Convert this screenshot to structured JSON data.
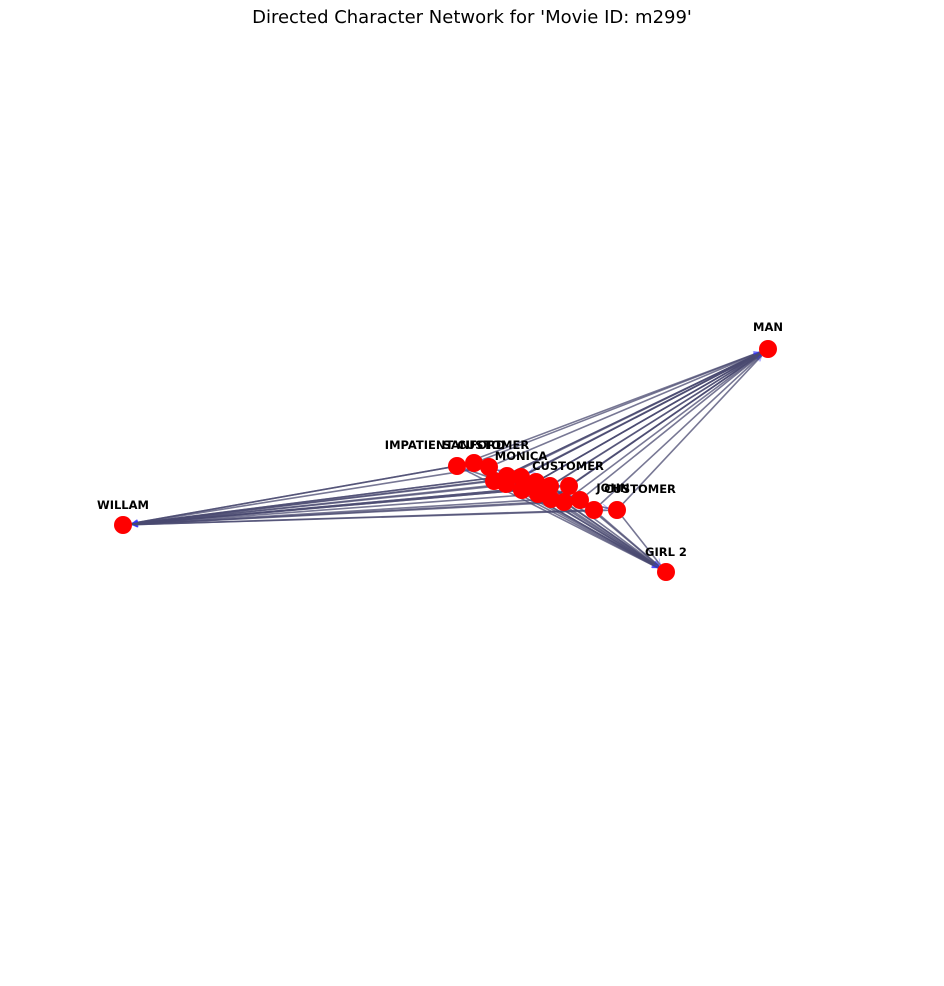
{
  "title": "Directed Character Network for 'Movie ID: m299'",
  "colors": {
    "node": "#ff0000",
    "edge": "#4a4a70",
    "arrow": "#3333ff",
    "label": "#000000"
  },
  "nodes": [
    {
      "id": "MAN",
      "label": "MAN"
    },
    {
      "id": "WILLAM",
      "label": "WILLAM"
    },
    {
      "id": "GIRL 2",
      "label": "GIRL 2"
    },
    {
      "id": "IMPATIENT CUSTOMER",
      "label": "IMPATIENT CUSTOMER"
    },
    {
      "id": "SANFORD",
      "label": "SANFORD"
    },
    {
      "id": "MONICA",
      "label": "MONICA"
    },
    {
      "id": "CUSTOMER",
      "label": "CUSTOMER"
    },
    {
      "id": "JOHN",
      "label": "JOHN"
    },
    {
      "id": "CUSTOMER 2",
      "label": "CUSTOMER"
    },
    {
      "id": "A",
      "label": ""
    },
    {
      "id": "B",
      "label": ""
    },
    {
      "id": "C",
      "label": ""
    },
    {
      "id": "D",
      "label": ""
    },
    {
      "id": "E",
      "label": ""
    },
    {
      "id": "F",
      "label": ""
    },
    {
      "id": "G",
      "label": ""
    },
    {
      "id": "H",
      "label": ""
    },
    {
      "id": "I",
      "label": ""
    },
    {
      "id": "J",
      "label": ""
    },
    {
      "id": "K",
      "label": ""
    }
  ],
  "edges": [
    [
      "IMPATIENT CUSTOMER",
      "MAN"
    ],
    [
      "SANFORD",
      "MAN"
    ],
    [
      "MONICA",
      "MAN"
    ],
    [
      "A",
      "MAN"
    ],
    [
      "B",
      "MAN"
    ],
    [
      "C",
      "MAN"
    ],
    [
      "D",
      "MAN"
    ],
    [
      "E",
      "MAN"
    ],
    [
      "F",
      "MAN"
    ],
    [
      "G",
      "MAN"
    ],
    [
      "H",
      "MAN"
    ],
    [
      "I",
      "MAN"
    ],
    [
      "J",
      "MAN"
    ],
    [
      "K",
      "MAN"
    ],
    [
      "JOHN",
      "MAN"
    ],
    [
      "CUSTOMER 2",
      "MAN"
    ],
    [
      "CUSTOMER",
      "MAN"
    ],
    [
      "IMPATIENT CUSTOMER",
      "WILLAM"
    ],
    [
      "SANFORD",
      "WILLAM"
    ],
    [
      "MONICA",
      "WILLAM"
    ],
    [
      "A",
      "WILLAM"
    ],
    [
      "B",
      "WILLAM"
    ],
    [
      "C",
      "WILLAM"
    ],
    [
      "D",
      "WILLAM"
    ],
    [
      "E",
      "WILLAM"
    ],
    [
      "F",
      "WILLAM"
    ],
    [
      "G",
      "WILLAM"
    ],
    [
      "H",
      "WILLAM"
    ],
    [
      "I",
      "WILLAM"
    ],
    [
      "J",
      "WILLAM"
    ],
    [
      "K",
      "WILLAM"
    ],
    [
      "JOHN",
      "WILLAM"
    ],
    [
      "CUSTOMER 2",
      "WILLAM"
    ],
    [
      "CUSTOMER",
      "WILLAM"
    ],
    [
      "IMPATIENT CUSTOMER",
      "GIRL 2"
    ],
    [
      "SANFORD",
      "GIRL 2"
    ],
    [
      "A",
      "GIRL 2"
    ],
    [
      "B",
      "GIRL 2"
    ],
    [
      "C",
      "GIRL 2"
    ],
    [
      "D",
      "GIRL 2"
    ],
    [
      "E",
      "GIRL 2"
    ],
    [
      "F",
      "GIRL 2"
    ],
    [
      "G",
      "GIRL 2"
    ],
    [
      "H",
      "GIRL 2"
    ],
    [
      "I",
      "GIRL 2"
    ],
    [
      "J",
      "GIRL 2"
    ],
    [
      "K",
      "GIRL 2"
    ],
    [
      "JOHN",
      "GIRL 2"
    ],
    [
      "CUSTOMER 2",
      "GIRL 2"
    ],
    [
      "MAN",
      "A"
    ],
    [
      "MAN",
      "C"
    ],
    [
      "MAN",
      "F"
    ],
    [
      "MAN",
      "H"
    ],
    [
      "WILLAM",
      "B"
    ],
    [
      "WILLAM",
      "E"
    ],
    [
      "A",
      "D"
    ],
    [
      "B",
      "G"
    ],
    [
      "C",
      "I"
    ],
    [
      "D",
      "J"
    ],
    [
      "E",
      "K"
    ],
    [
      "F",
      "JOHN"
    ],
    [
      "G",
      "CUSTOMER 2"
    ],
    [
      "H",
      "IMPATIENT CUSTOMER"
    ],
    [
      "I",
      "SANFORD"
    ],
    [
      "J",
      "MONICA"
    ],
    [
      "K",
      "CUSTOMER"
    ]
  ]
}
